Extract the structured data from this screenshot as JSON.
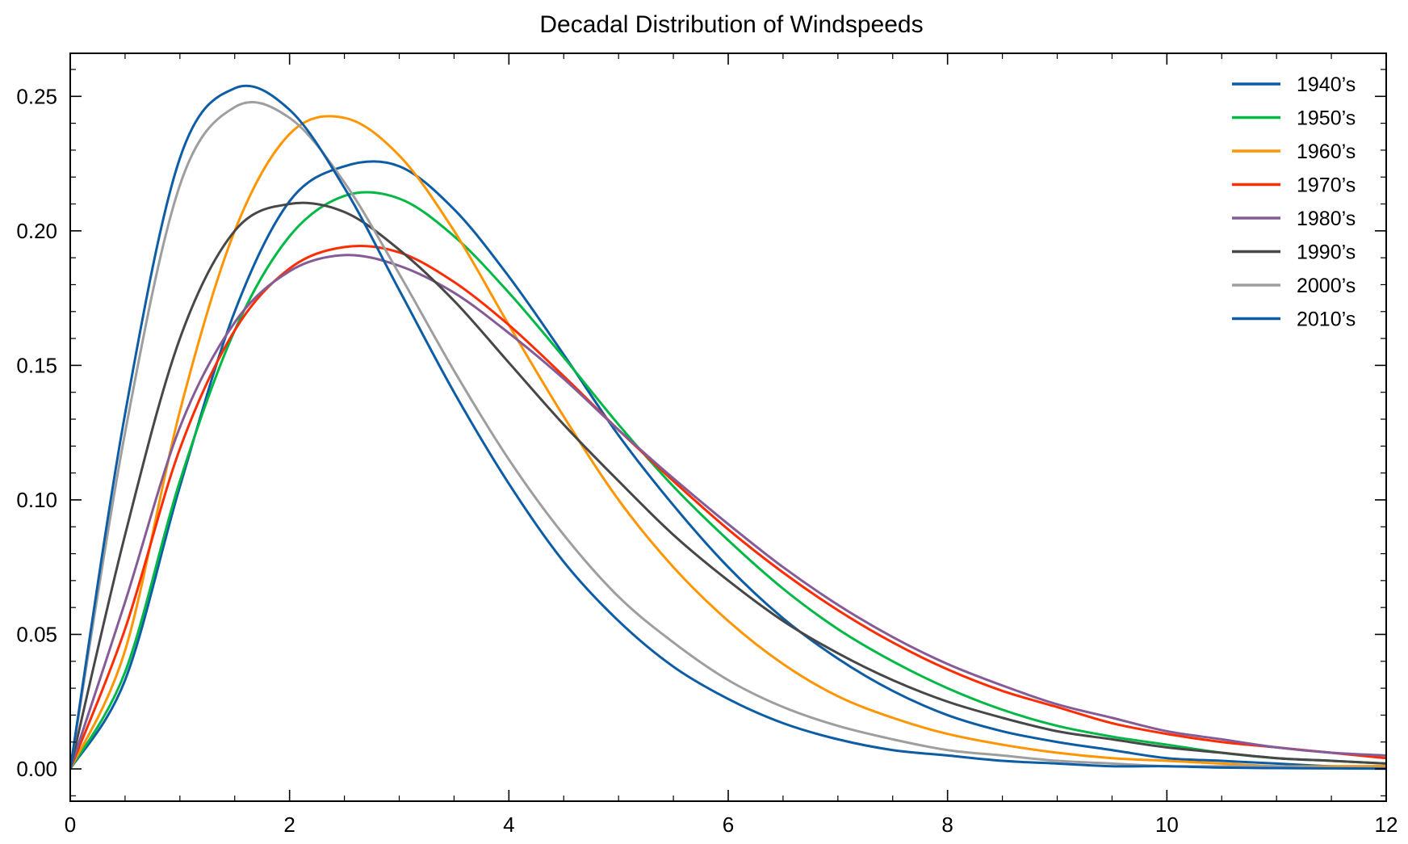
{
  "chart_data": {
    "type": "line",
    "title": "Decadal Distribution of Windspeeds",
    "xlabel": "",
    "ylabel": "",
    "xlim": [
      0,
      12
    ],
    "ylim": [
      -0.012,
      0.266
    ],
    "xticks": [
      0,
      2,
      4,
      6,
      8,
      10,
      12
    ],
    "xtick_labels": [
      "0",
      "2",
      "4",
      "6",
      "8",
      "10",
      "12"
    ],
    "yticks": [
      0.0,
      0.05,
      0.1,
      0.15,
      0.2,
      0.25
    ],
    "ytick_labels": [
      "0.00",
      "0.05",
      "0.10",
      "0.15",
      "0.20",
      "0.25"
    ],
    "grid": false,
    "legend_position": "top-right",
    "series": [
      {
        "name": "1940’s",
        "color": "#0C5DA5",
        "x": [
          0,
          0.5,
          1,
          1.5,
          2,
          2.5,
          3,
          3.5,
          4,
          4.5,
          5,
          5.5,
          6,
          6.5,
          7,
          7.5,
          8,
          8.5,
          9,
          9.5,
          10,
          10.5,
          11,
          11.5,
          12
        ],
        "y": [
          0,
          0.033,
          0.105,
          0.17,
          0.211,
          0.224,
          0.224,
          0.208,
          0.183,
          0.154,
          0.124,
          0.098,
          0.075,
          0.056,
          0.041,
          0.029,
          0.02,
          0.014,
          0.01,
          0.007,
          0.004,
          0.003,
          0.002,
          0.001,
          0.001
        ]
      },
      {
        "name": "1950’s",
        "color": "#00B945",
        "x": [
          0,
          0.5,
          1,
          1.5,
          2,
          2.5,
          3,
          3.5,
          4,
          4.5,
          5,
          5.5,
          6,
          6.5,
          7,
          7.5,
          8,
          8.5,
          9,
          9.5,
          10,
          10.5,
          11,
          11.5,
          12
        ],
        "y": [
          0,
          0.036,
          0.107,
          0.163,
          0.198,
          0.213,
          0.212,
          0.198,
          0.177,
          0.153,
          0.128,
          0.105,
          0.085,
          0.067,
          0.052,
          0.04,
          0.03,
          0.022,
          0.016,
          0.012,
          0.009,
          0.006,
          0.004,
          0.003,
          0.002
        ]
      },
      {
        "name": "1960’s",
        "color": "#FF9500",
        "x": [
          0,
          0.5,
          1,
          1.5,
          2,
          2.5,
          3,
          3.5,
          4,
          4.5,
          5,
          5.5,
          6,
          6.5,
          7,
          7.5,
          8,
          8.5,
          9,
          9.5,
          10,
          10.5,
          11,
          11.5,
          12
        ],
        "y": [
          0,
          0.044,
          0.133,
          0.2,
          0.236,
          0.242,
          0.228,
          0.2,
          0.165,
          0.131,
          0.1,
          0.075,
          0.055,
          0.039,
          0.027,
          0.019,
          0.013,
          0.009,
          0.006,
          0.004,
          0.003,
          0.002,
          0.001,
          0.001,
          0.001
        ]
      },
      {
        "name": "1970’s",
        "color": "#FF2C00",
        "x": [
          0,
          0.5,
          1,
          1.5,
          2,
          2.5,
          3,
          3.5,
          4,
          4.5,
          5,
          5.5,
          6,
          6.5,
          7,
          7.5,
          8,
          8.5,
          9,
          9.5,
          10,
          10.5,
          11,
          11.5,
          12
        ],
        "y": [
          0,
          0.052,
          0.119,
          0.163,
          0.186,
          0.194,
          0.192,
          0.181,
          0.165,
          0.146,
          0.126,
          0.107,
          0.089,
          0.073,
          0.059,
          0.047,
          0.037,
          0.029,
          0.023,
          0.017,
          0.013,
          0.01,
          0.008,
          0.006,
          0.004
        ]
      },
      {
        "name": "1980’s",
        "color": "#845B97",
        "x": [
          0,
          0.5,
          1,
          1.5,
          2,
          2.5,
          3,
          3.5,
          4,
          4.5,
          5,
          5.5,
          6,
          6.5,
          7,
          7.5,
          8,
          8.5,
          9,
          9.5,
          10,
          10.5,
          11,
          11.5,
          12
        ],
        "y": [
          0,
          0.062,
          0.127,
          0.166,
          0.185,
          0.191,
          0.187,
          0.177,
          0.162,
          0.145,
          0.126,
          0.108,
          0.091,
          0.075,
          0.061,
          0.049,
          0.039,
          0.031,
          0.024,
          0.019,
          0.014,
          0.011,
          0.008,
          0.006,
          0.005
        ]
      },
      {
        "name": "1990’s",
        "color": "#474747",
        "x": [
          0,
          0.5,
          1,
          1.5,
          2,
          2.5,
          3,
          3.5,
          4,
          4.5,
          5,
          5.5,
          6,
          6.5,
          7,
          7.5,
          8,
          8.5,
          9,
          9.5,
          10,
          10.5,
          11,
          11.5,
          12
        ],
        "y": [
          0,
          0.087,
          0.16,
          0.2,
          0.21,
          0.207,
          0.193,
          0.174,
          0.151,
          0.128,
          0.107,
          0.087,
          0.07,
          0.055,
          0.043,
          0.033,
          0.025,
          0.019,
          0.014,
          0.011,
          0.008,
          0.006,
          0.004,
          0.003,
          0.002
        ]
      },
      {
        "name": "2000’s",
        "color": "#9E9E9E",
        "x": [
          0,
          0.5,
          1,
          1.5,
          2,
          2.5,
          3,
          3.5,
          4,
          4.5,
          5,
          5.5,
          6,
          6.5,
          7,
          7.5,
          8,
          8.5,
          9,
          9.5,
          10,
          10.5,
          11,
          11.5,
          12
        ],
        "y": [
          0,
          0.125,
          0.217,
          0.246,
          0.242,
          0.218,
          0.184,
          0.148,
          0.115,
          0.087,
          0.064,
          0.047,
          0.033,
          0.023,
          0.016,
          0.011,
          0.007,
          0.005,
          0.003,
          0.002,
          0.001,
          0.001,
          0.001,
          0.0005,
          0.0003
        ]
      },
      {
        "name": "2010’s",
        "color": "#0C5DA5",
        "x": [
          0,
          0.5,
          1,
          1.5,
          2,
          2.5,
          3,
          3.5,
          4,
          4.5,
          5,
          5.5,
          6,
          6.5,
          7,
          7.5,
          8,
          8.5,
          9,
          9.5,
          10,
          10.5,
          11,
          11.5,
          12
        ],
        "y": [
          0,
          0.132,
          0.227,
          0.253,
          0.245,
          0.216,
          0.178,
          0.14,
          0.106,
          0.077,
          0.055,
          0.038,
          0.026,
          0.017,
          0.011,
          0.007,
          0.005,
          0.003,
          0.002,
          0.001,
          0.001,
          0.0005,
          0.0003,
          0.0002,
          0.0001
        ]
      }
    ]
  }
}
